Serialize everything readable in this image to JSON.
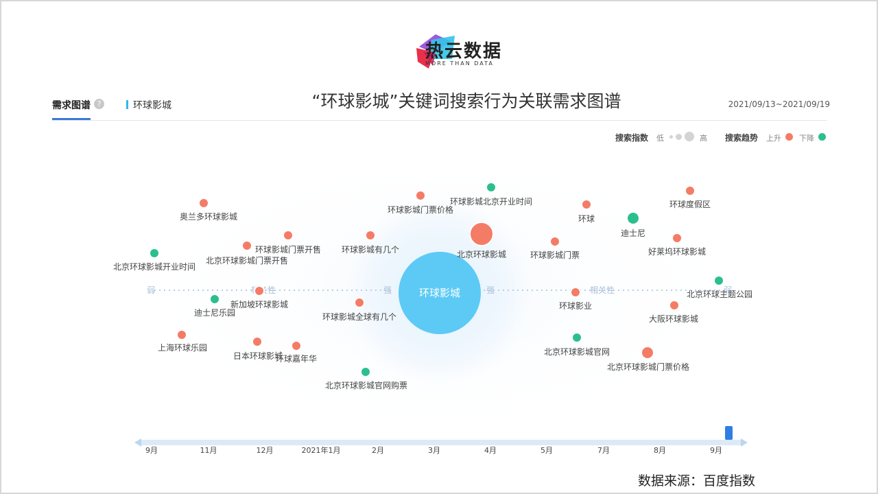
{
  "logo": {
    "name": "热云数据",
    "tagline": "MORE THAN DATA"
  },
  "header": {
    "tab_active": "需求图谱",
    "help": "?",
    "keyword": "环球影城",
    "title": "“环球影城”关键词搜索行为关联需求图谱",
    "date_range": "2021/09/13~2021/09/19"
  },
  "legend": {
    "index_label": "搜索指数",
    "low": "低",
    "high": "高",
    "trend_label": "搜索趋势",
    "up": "上升",
    "down": "下降",
    "up_color": "#f47c66",
    "down_color": "#2cbf8d"
  },
  "axis": {
    "weak": "弱",
    "relevance": "相关性",
    "strong": "强"
  },
  "center": {
    "label": "环球影城",
    "color": "#5ccaf5"
  },
  "nodes": [
    {
      "label": "奥兰多环球影城",
      "trend": "up",
      "size": "s"
    },
    {
      "label": "北京环球影城门票开售",
      "trend": "up",
      "size": "s"
    },
    {
      "label": "环球影城门票开售",
      "trend": "up",
      "size": "s"
    },
    {
      "label": "北京环球影城开业时间",
      "trend": "down",
      "size": "s"
    },
    {
      "label": "迪士尼乐园",
      "trend": "down",
      "size": "s"
    },
    {
      "label": "新加坡环球影城",
      "trend": "up",
      "size": "s"
    },
    {
      "label": "上海环球乐园",
      "trend": "up",
      "size": "s"
    },
    {
      "label": "日本环球影城",
      "trend": "up",
      "size": "s"
    },
    {
      "label": "环球嘉年华",
      "trend": "up",
      "size": "s"
    },
    {
      "label": "环球影城门票价格",
      "trend": "up",
      "size": "s"
    },
    {
      "label": "环球影城北京开业时间",
      "trend": "down",
      "size": "s"
    },
    {
      "label": "环球影城有几个",
      "trend": "up",
      "size": "s"
    },
    {
      "label": "北京环球影城",
      "trend": "up",
      "size": "l"
    },
    {
      "label": "环球影城全球有几个",
      "trend": "up",
      "size": "s"
    },
    {
      "label": "北京环球影城官网购票",
      "trend": "down",
      "size": "s"
    },
    {
      "label": "环球",
      "trend": "up",
      "size": "s"
    },
    {
      "label": "环球度假区",
      "trend": "up",
      "size": "s"
    },
    {
      "label": "迪士尼",
      "trend": "down",
      "size": "m"
    },
    {
      "label": "好莱坞环球影城",
      "trend": "up",
      "size": "s"
    },
    {
      "label": "环球影城门票",
      "trend": "up",
      "size": "s"
    },
    {
      "label": "环球影业",
      "trend": "up",
      "size": "s"
    },
    {
      "label": "北京环球主题公园",
      "trend": "down",
      "size": "s"
    },
    {
      "label": "大阪环球影城",
      "trend": "up",
      "size": "s"
    },
    {
      "label": "北京环球影城官网",
      "trend": "down",
      "size": "s"
    },
    {
      "label": "北京环球影城门票价格",
      "trend": "up",
      "size": "m"
    }
  ],
  "timeline": {
    "months": [
      "9月",
      "11月",
      "12月",
      "2021年1月",
      "2月",
      "3月",
      "4月",
      "5月",
      "7月",
      "8月",
      "9月"
    ]
  },
  "source": "数据来源：百度指数"
}
